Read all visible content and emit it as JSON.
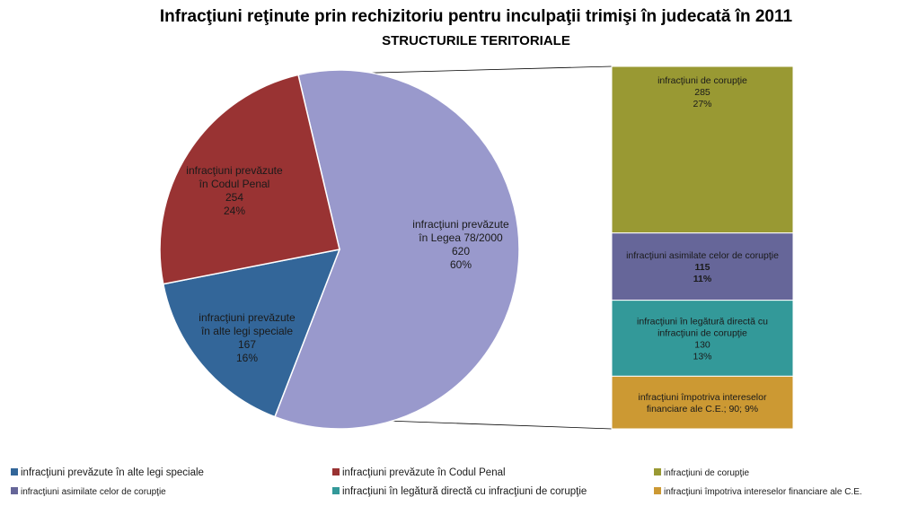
{
  "chart_data": {
    "type": "bar-of-pie",
    "title": "Infracţiuni reţinute prin rechizitoriu pentru inculpaţii trimişi în judecată în 2011",
    "subtitle": "STRUCTURILE TERITORIALE",
    "pie": {
      "slices": [
        {
          "key": "legea",
          "label_lines": [
            "infracţiuni prevăzute",
            "în Legea 78/2000"
          ],
          "value": 620,
          "percent": "60%",
          "color": "#9999cc"
        },
        {
          "key": "alte",
          "label_lines": [
            "infracţiuni prevăzute",
            "în alte legi speciale"
          ],
          "value": 167,
          "percent": "16%",
          "color": "#336699"
        },
        {
          "key": "penal",
          "label_lines": [
            "infracţiuni prevăzute",
            "în Codul Penal"
          ],
          "value": 254,
          "percent": "24%",
          "color": "#993333"
        }
      ]
    },
    "bar": {
      "segments": [
        {
          "key": "coruptie",
          "label_lines": [
            "infracţiuni de corupţie"
          ],
          "value": 285,
          "percent": "27%",
          "color": "#999933"
        },
        {
          "key": "asimilate",
          "label_lines": [
            "infracţiuni asimilate  celor de corupţie"
          ],
          "value": 115,
          "percent": "11%",
          "color": "#666699",
          "bold_numbers": true
        },
        {
          "key": "legatura",
          "label_lines": [
            "infracţiuni în legătură directă cu",
            "infracţiuni de corupţie"
          ],
          "value": 130,
          "percent": "13%",
          "color": "#339999"
        },
        {
          "key": "interese",
          "label_lines": [
            "infracţiuni împotriva  intereselor",
            "financiare ale C.E.;  90; 9%"
          ],
          "value": 90,
          "percent": "9%",
          "color": "#cc9933",
          "inline_value": true
        }
      ]
    },
    "legend": [
      {
        "text": "infracţiuni prevăzute  în alte legi speciale",
        "color": "#336699"
      },
      {
        "text": "infracţiuni prevăzute  în Codul Penal",
        "color": "#993333"
      },
      {
        "text": "infracţiuni de corupţie",
        "color": "#999933"
      },
      {
        "text": "infracţiuni asimilate  celor de corupţie",
        "color": "#666699"
      },
      {
        "text": "infracţiuni  în  legătură directă cu infracţiuni  de corupţie",
        "color": "#339999"
      },
      {
        "text": "infracţiuni împotriva  intereselor financiare ale C.E.",
        "color": "#cc9933"
      }
    ]
  }
}
